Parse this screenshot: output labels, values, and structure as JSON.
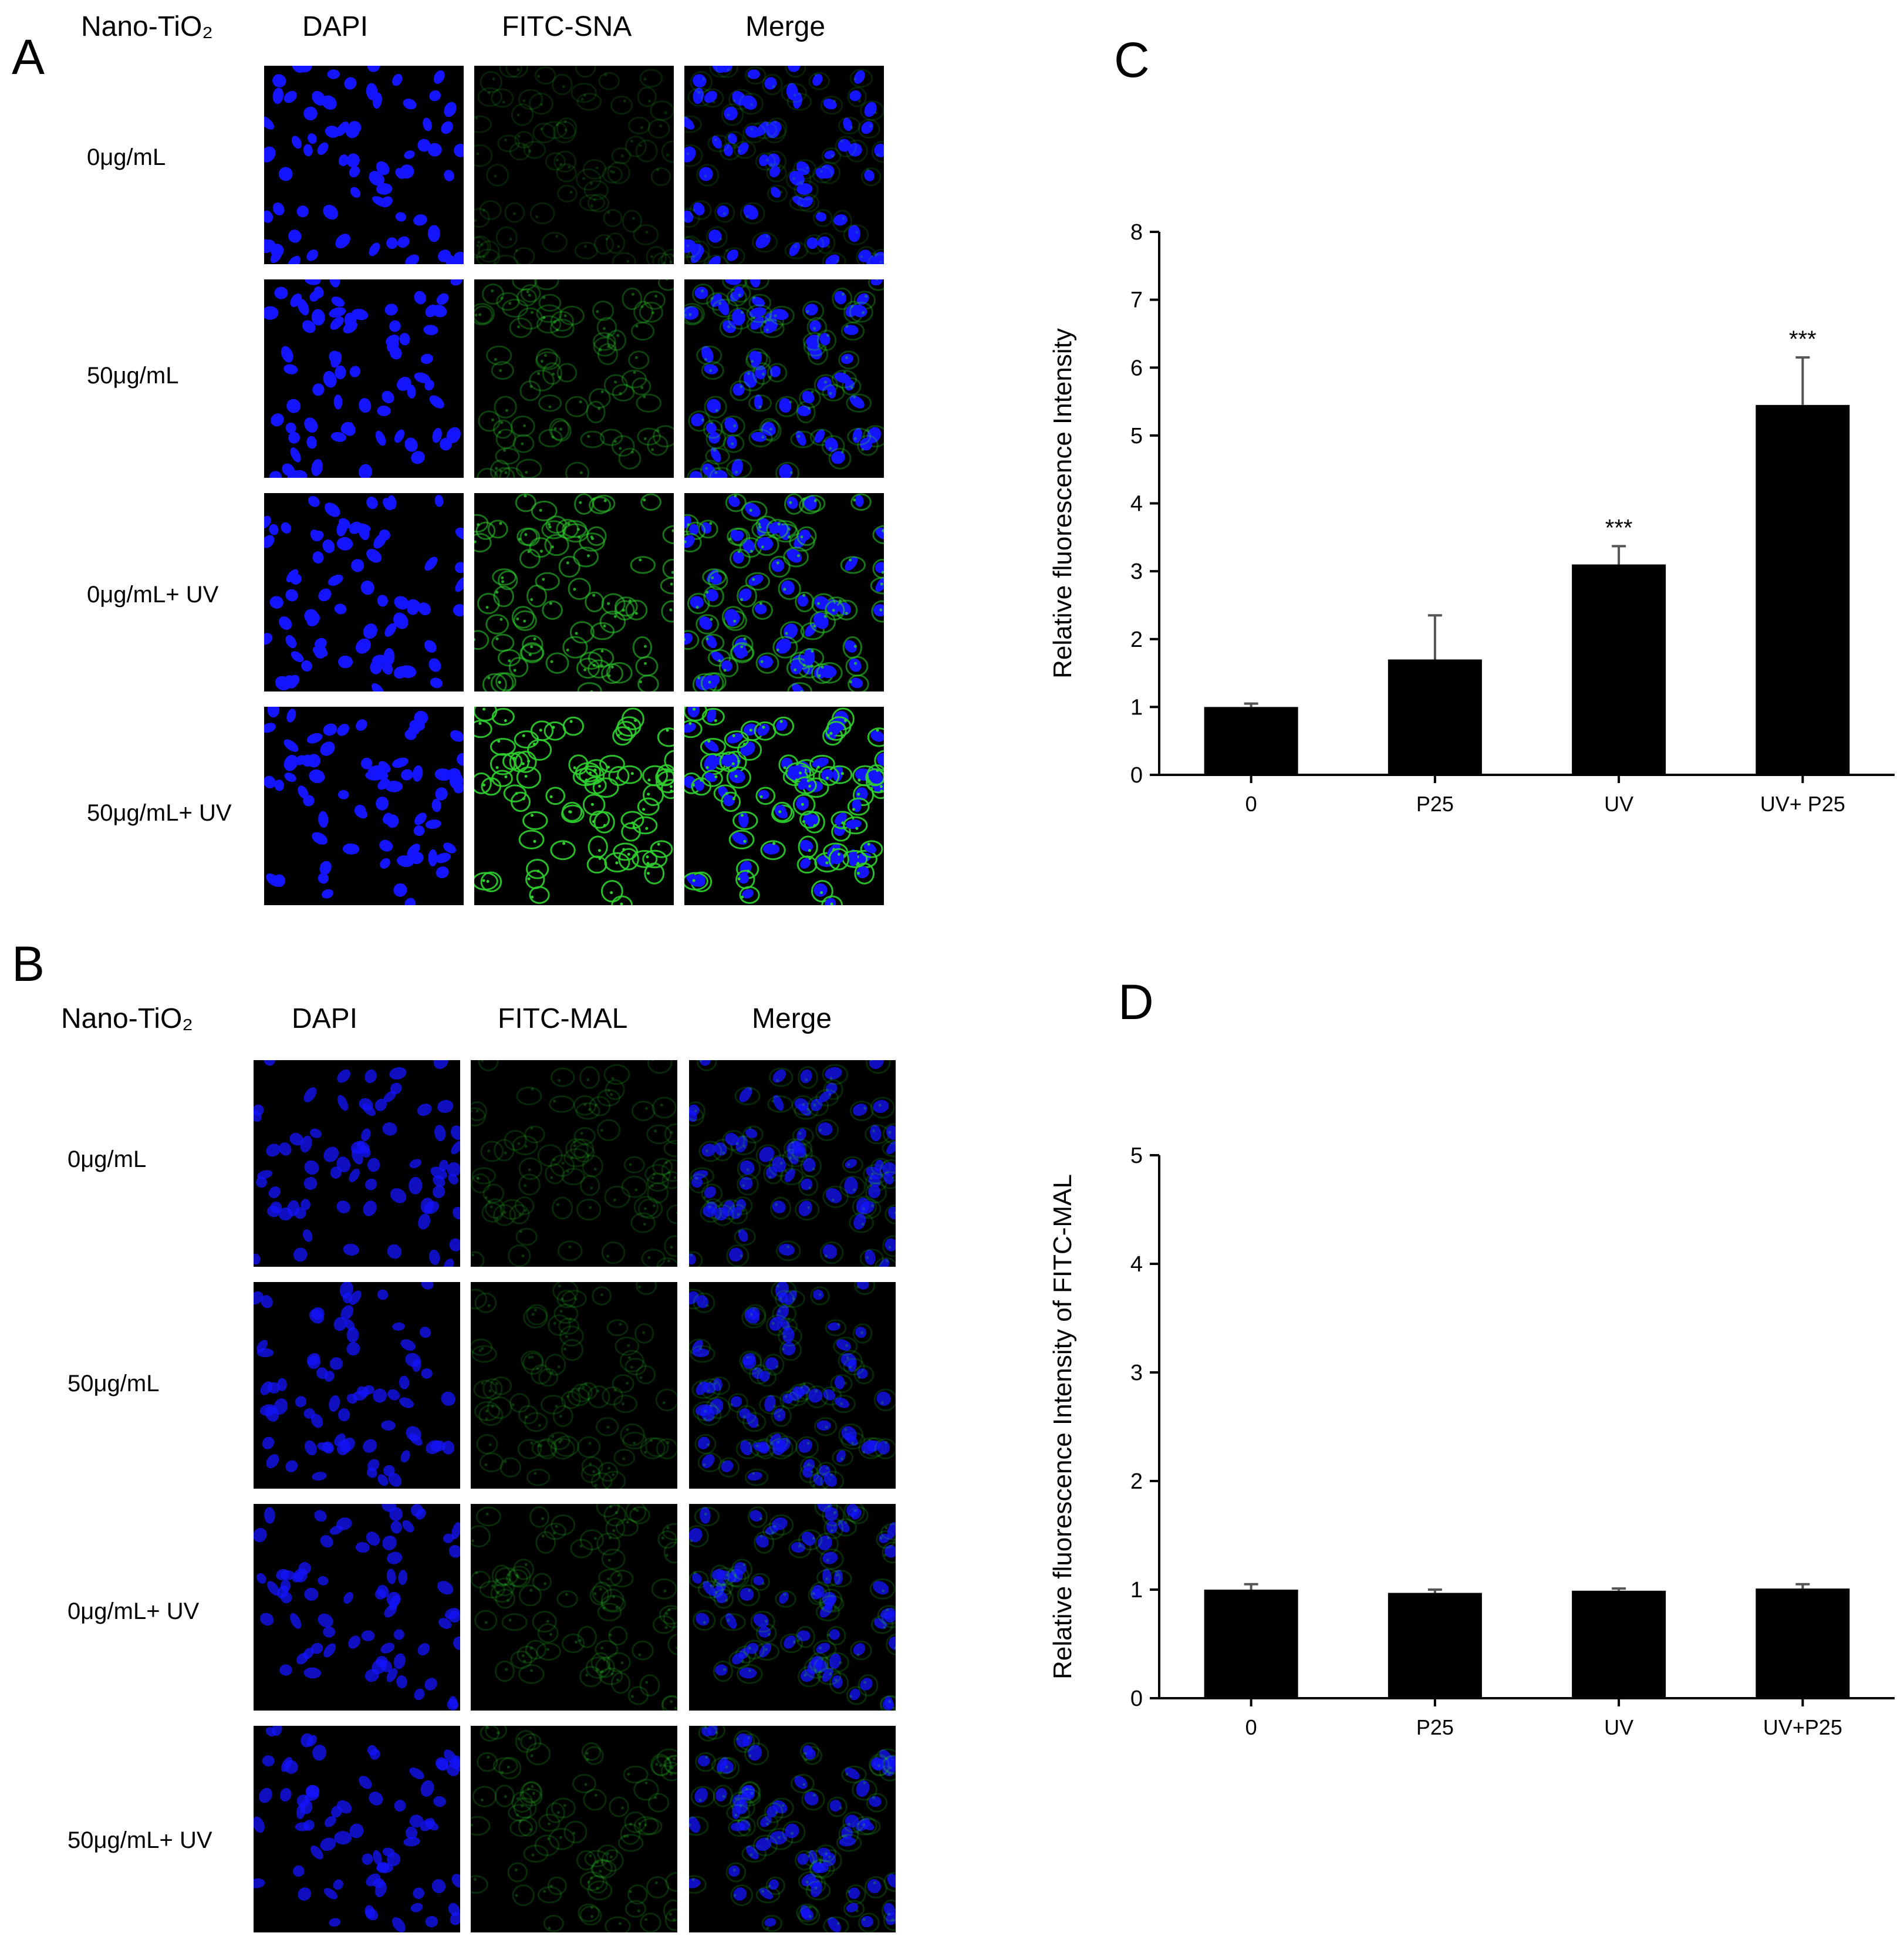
{
  "panel_a": {
    "letter": "A",
    "row_header": "Nano-TiO₂",
    "columns": [
      "DAPI",
      "FITC-SNA",
      "Merge"
    ],
    "rows": [
      "0μg/mL",
      "50μg/mL",
      "0μg/mL+ UV",
      "50μg/mL+ UV"
    ]
  },
  "panel_b": {
    "letter": "B",
    "row_header": "Nano-TiO₂",
    "columns": [
      "DAPI",
      "FITC-MAL",
      "Merge"
    ],
    "rows": [
      "0μg/mL",
      "50μg/mL",
      "0μg/mL+ UV",
      "50μg/mL+ UV"
    ]
  },
  "panel_c": {
    "letter": "C"
  },
  "panel_d": {
    "letter": "D"
  },
  "colors": {
    "dapi": "#1414ff",
    "fitc": "#2fd02f",
    "bar": "#000000",
    "background": "#ffffff"
  },
  "chart_data": [
    {
      "id": "C",
      "type": "bar",
      "categories": [
        "0",
        "P25",
        "UV",
        "UV+ P25"
      ],
      "values": [
        1.0,
        1.7,
        3.1,
        5.45
      ],
      "errors": [
        0.05,
        0.65,
        0.27,
        0.7
      ],
      "annotations": [
        "",
        "",
        "***",
        "***"
      ],
      "ylabel": "Relative fluorescence Intensity",
      "xlabel": "",
      "ylim": [
        0,
        8
      ],
      "yticks": [
        0,
        1,
        2,
        3,
        4,
        5,
        6,
        7,
        8
      ],
      "grid": false,
      "legend": "none"
    },
    {
      "id": "D",
      "type": "bar",
      "categories": [
        "0",
        "P25",
        "UV",
        "UV+P25"
      ],
      "values": [
        1.0,
        0.97,
        0.99,
        1.01
      ],
      "errors": [
        0.05,
        0.03,
        0.02,
        0.04
      ],
      "annotations": [
        "",
        "",
        "",
        ""
      ],
      "ylabel": "Relative fluorescence Intensity of FITC-MAL",
      "xlabel": "",
      "ylim": [
        0,
        5
      ],
      "yticks": [
        0,
        1,
        2,
        3,
        4,
        5
      ],
      "grid": false,
      "legend": "none"
    }
  ]
}
